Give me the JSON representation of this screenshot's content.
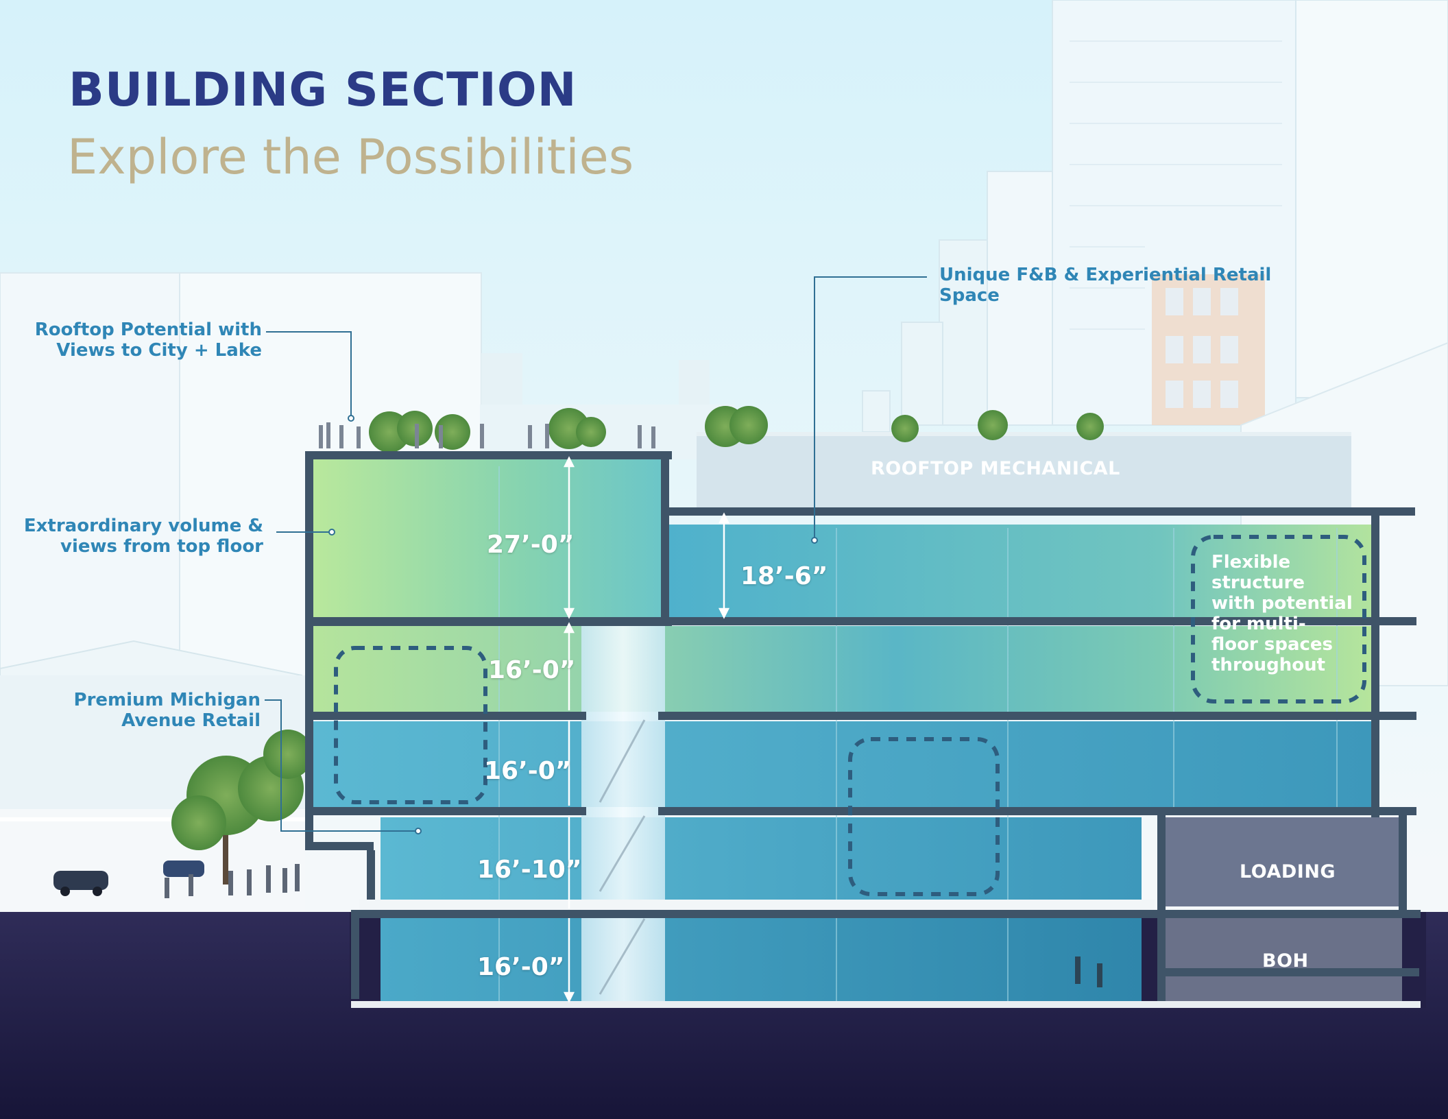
{
  "header": {
    "title": "BUILDING SECTION",
    "subtitle": "Explore the Possibilities"
  },
  "callouts": {
    "rooftop_potential": "Rooftop Potential with\nViews to City + Lake",
    "extraordinary_volume": "Extraordinary volume &\nviews from top floor",
    "premium_retail": "Premium Michigan\nAvenue Retail",
    "unique_fb": "Unique F&B & Experiential Retail\nSpace"
  },
  "dimensions": {
    "top_floor": "27’-0”",
    "upper_east": "18’-6”",
    "level_4": "16’-0”",
    "level_3": "16’-0”",
    "level_2": "16’-10”",
    "lower_level": "16’-0”"
  },
  "zones": {
    "rooftop_mechanical": "ROOFTOP MECHANICAL",
    "loading": "LOADING",
    "boh": "BOH"
  },
  "flex_note": "Flexible\nstructure\nwith potential\nfor multi-\nfloor spaces\nthroughout",
  "colors": {
    "title": "#2b3b86",
    "subtitle": "#bfb28e",
    "callout": "#2f86b6",
    "ground": "#1c1a3e"
  }
}
